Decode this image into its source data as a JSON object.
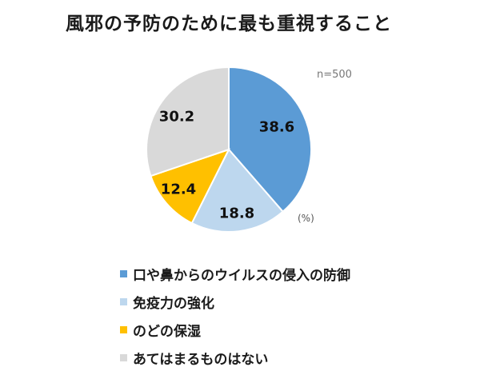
{
  "title": "風邪の予防のために最も重視すること",
  "sample_label": "n=500",
  "unit_label": "(%)",
  "chart_data": {
    "type": "pie",
    "title": "風邪の予防のために最も重視すること",
    "subtitle": "n=500",
    "unit": "%",
    "start_angle": "12 o'clock, clockwise",
    "categories": [
      "口や鼻からのウイルスの侵入の防御",
      "免疫力の強化",
      "のどの保湿",
      "あてはまるものはない"
    ],
    "values": [
      38.6,
      18.8,
      12.4,
      30.2
    ],
    "colors": [
      "#5b9bd5",
      "#bdd7ee",
      "#ffc000",
      "#d9d9d9"
    ],
    "data_labels": [
      "38.6",
      "18.8",
      "12.4",
      "30.2"
    ],
    "legend_position": "bottom"
  },
  "legend": [
    {
      "label": "口や鼻からのウイルスの侵入の防御",
      "color": "#5b9bd5"
    },
    {
      "label": "免疫力の強化",
      "color": "#bdd7ee"
    },
    {
      "label": "のどの保湿",
      "color": "#ffc000"
    },
    {
      "label": "あてはまるものはない",
      "color": "#d9d9d9"
    }
  ]
}
